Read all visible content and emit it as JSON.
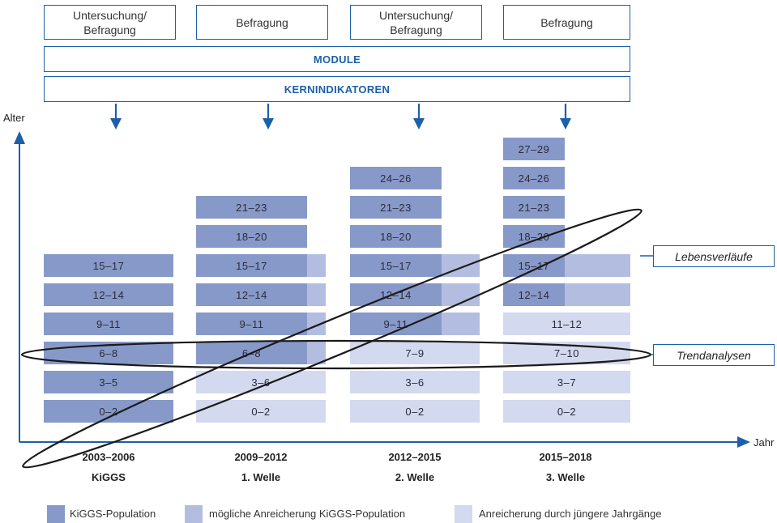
{
  "top_boxes": [
    {
      "label": "Untersuchung/\nBefragung"
    },
    {
      "label": "Befragung"
    },
    {
      "label": "Untersuchung/\nBefragung"
    },
    {
      "label": "Befragung"
    }
  ],
  "bands": {
    "module": "MODULE",
    "kernindikatoren": "KERNINDIKATOREN"
  },
  "axis": {
    "y_label": "Alter",
    "x_label": "Jahr"
  },
  "columns": [
    {
      "period": "2003–2006",
      "wave": "KiGGS",
      "cells": [
        {
          "label": "15–17",
          "type": "kiggs"
        },
        {
          "label": "12–14",
          "type": "kiggs"
        },
        {
          "label": "9–11",
          "type": "kiggs"
        },
        {
          "label": "6–8",
          "type": "kiggs"
        },
        {
          "label": "3–5",
          "type": "kiggs"
        },
        {
          "label": "0–2",
          "type": "kiggs"
        }
      ]
    },
    {
      "period": "2009–2012",
      "wave": "1. Welle",
      "cells": [
        {
          "label": "21–23",
          "type": "kiggs"
        },
        {
          "label": "18–20",
          "type": "kiggs"
        },
        {
          "label": "15–17",
          "type": "kiggs",
          "ext": "poss"
        },
        {
          "label": "12–14",
          "type": "kiggs",
          "ext": "poss"
        },
        {
          "label": "9–11",
          "type": "kiggs",
          "ext": "poss"
        },
        {
          "label": "6–8",
          "type": "kiggs",
          "ext": "poss"
        },
        {
          "label": "3–6",
          "type": "young"
        },
        {
          "label": "0–2",
          "type": "young"
        }
      ]
    },
    {
      "period": "2012–2015",
      "wave": "2. Welle",
      "cells": [
        {
          "label": "24–26",
          "type": "kiggs"
        },
        {
          "label": "21–23",
          "type": "kiggs"
        },
        {
          "label": "18–20",
          "type": "kiggs"
        },
        {
          "label": "15–17",
          "type": "kiggs",
          "ext": "poss"
        },
        {
          "label": "12–14",
          "type": "kiggs",
          "ext": "poss"
        },
        {
          "label": "9–11",
          "type": "kiggs",
          "ext": "poss"
        },
        {
          "label": "7–9",
          "type": "young"
        },
        {
          "label": "3–6",
          "type": "young"
        },
        {
          "label": "0–2",
          "type": "young"
        }
      ]
    },
    {
      "period": "2015–2018",
      "wave": "3. Welle",
      "cells": [
        {
          "label": "27–29",
          "type": "kiggs"
        },
        {
          "label": "24–26",
          "type": "kiggs"
        },
        {
          "label": "21–23",
          "type": "kiggs"
        },
        {
          "label": "18–20",
          "type": "kiggs"
        },
        {
          "label": "15–17",
          "type": "kiggs",
          "ext": "poss"
        },
        {
          "label": "12–14",
          "type": "kiggs",
          "ext": "poss"
        },
        {
          "label": "11–12",
          "type": "young"
        },
        {
          "label": "7–10",
          "type": "young"
        },
        {
          "label": "3–7",
          "type": "young"
        },
        {
          "label": "0–2",
          "type": "young"
        }
      ]
    }
  ],
  "callouts": {
    "lebensverlaeufe": "Lebensverläufe",
    "trendanalysen": "Trendanalysen"
  },
  "legend": [
    {
      "label": "KiGGS-Population",
      "color": "#8799c8"
    },
    {
      "label": "mögliche Anreicherung KiGGS-Population",
      "color": "#b3bde0"
    },
    {
      "label": "Anreicherung durch jüngere Jahrgänge",
      "color": "#d3d9ee"
    }
  ],
  "colors": {
    "accent": "#1d5fa8",
    "kiggs": "#8799c8",
    "possible": "#b3bde0",
    "younger": "#d3d9ee"
  }
}
